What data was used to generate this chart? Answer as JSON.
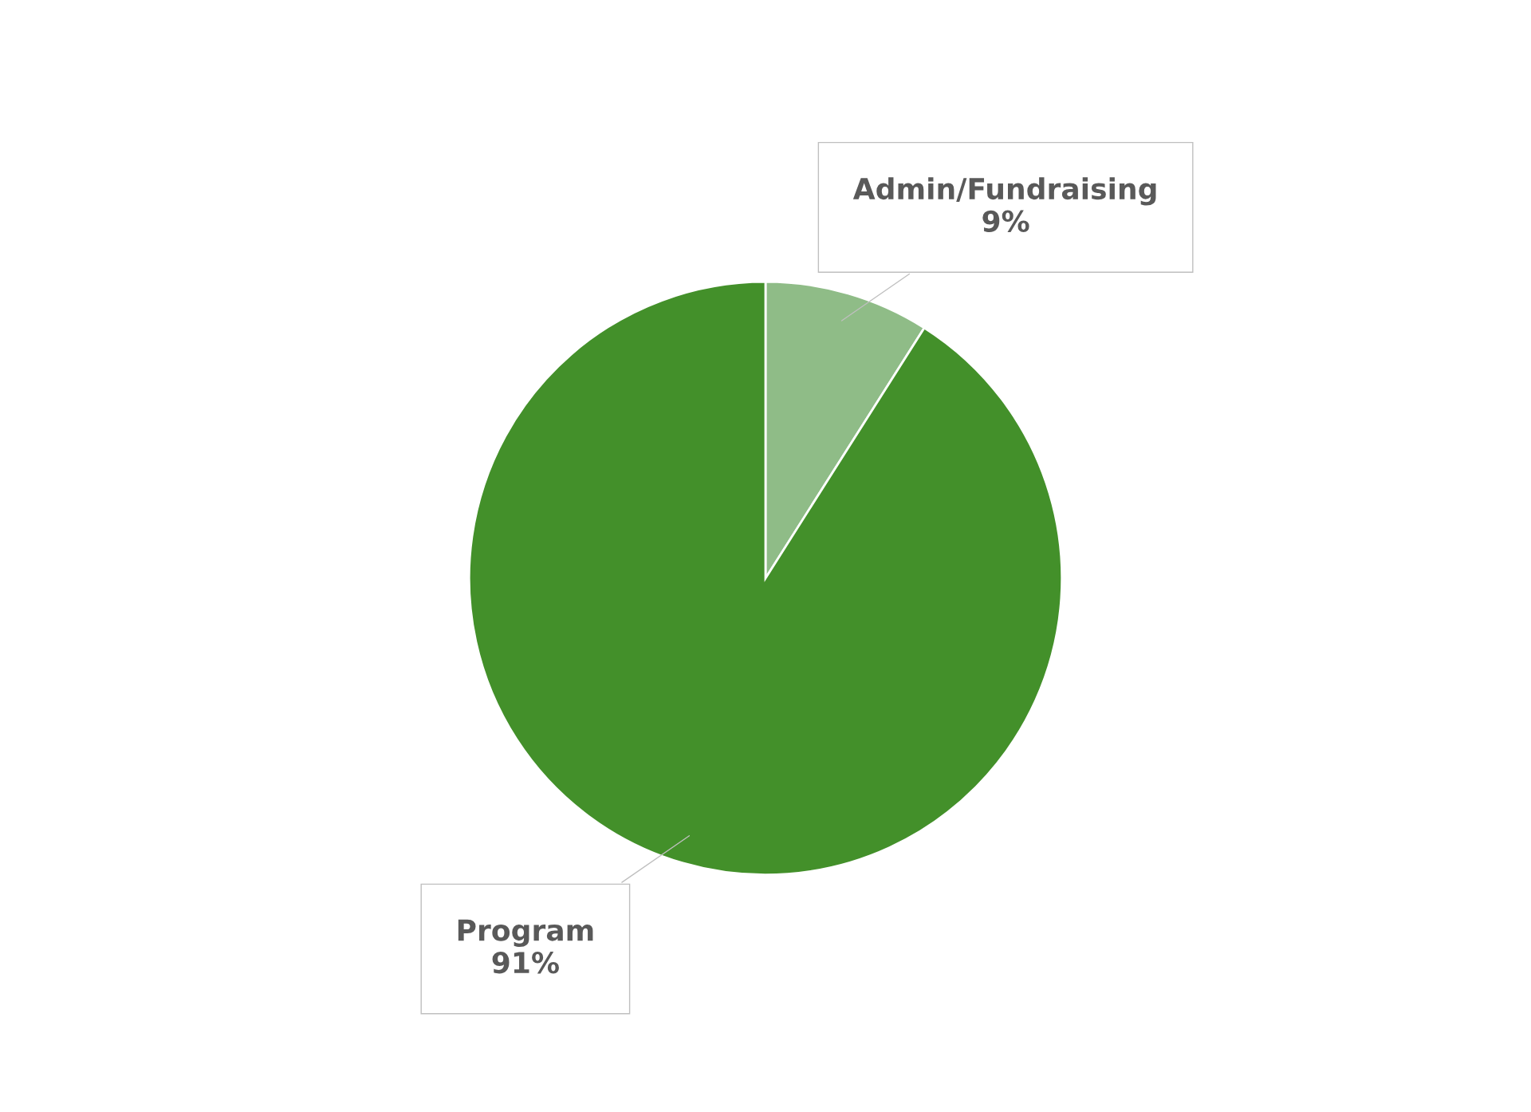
{
  "chart_data": {
    "type": "pie",
    "categories": [
      "Admin/Fundraising",
      "Program"
    ],
    "values": [
      9,
      91
    ],
    "value_labels": [
      "9%",
      "91%"
    ],
    "colors": [
      "#8fbc87",
      "#43902a"
    ],
    "legend": false
  }
}
